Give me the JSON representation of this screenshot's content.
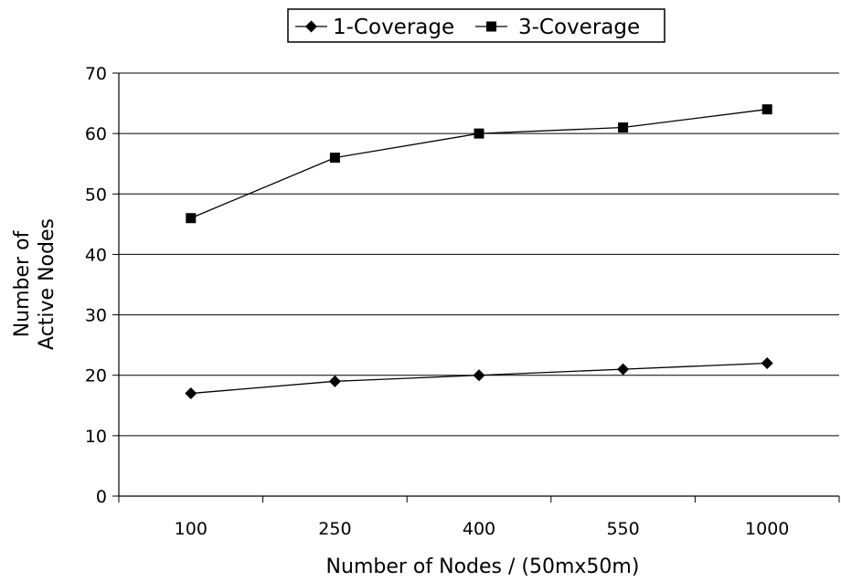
{
  "chart_data": {
    "type": "line",
    "categories": [
      "100",
      "250",
      "400",
      "550",
      "1000"
    ],
    "series": [
      {
        "name": "1-Coverage",
        "marker": "diamond",
        "values": [
          17,
          19,
          20,
          21,
          22
        ]
      },
      {
        "name": "3-Coverage",
        "marker": "square",
        "values": [
          46,
          56,
          60,
          61,
          64
        ]
      }
    ],
    "title": "",
    "xlabel": "Number of Nodes / (50mx50m)",
    "ylabel_lines": [
      "Number of",
      "Active Nodes"
    ],
    "ylim": [
      0,
      70
    ],
    "yticks": [
      0,
      10,
      20,
      30,
      40,
      50,
      60,
      70
    ],
    "grid": true,
    "legend_position": "top-center",
    "line_color": "#000000",
    "marker_color": "#000000"
  }
}
